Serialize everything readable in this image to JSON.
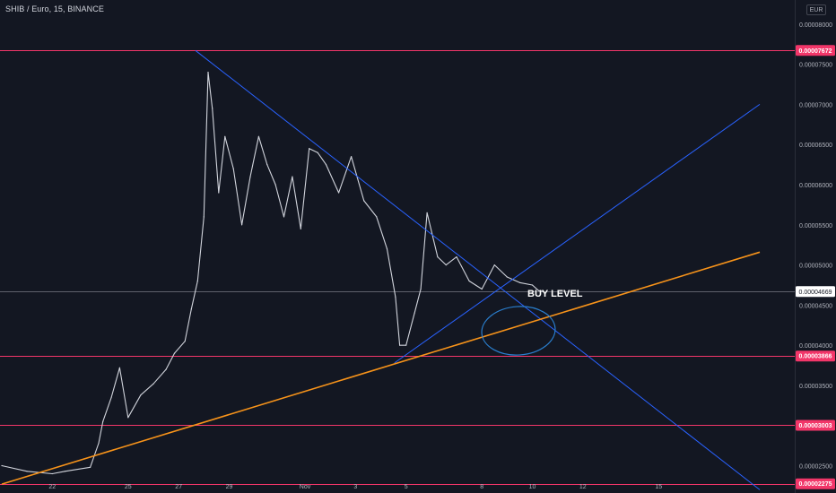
{
  "header": {
    "symbol_title": "SHIB / Euro, 15, BINANCE",
    "currency": "EUR"
  },
  "colors": {
    "background": "#131722",
    "price_line": "#d1d4dc",
    "trend_line_blue": "#2962ff",
    "trend_line_orange": "#f7931a",
    "horizontal_level": "#f23669",
    "price_badge": "#f23669",
    "current_price_badge": "#ffffff",
    "axis_text": "#b2b5be"
  },
  "annotation": {
    "text": "BUY LEVEL"
  },
  "chart_data": {
    "type": "line",
    "title": "SHIB / Euro, 15, BINANCE",
    "x_tick_labels": [
      "22",
      "25",
      "27",
      "29",
      "Nov",
      "3",
      "5",
      "8",
      "10",
      "12",
      "15"
    ],
    "y_tick_labels": [
      "0.00008000",
      "0.00007500",
      "0.00007000",
      "0.00006500",
      "0.00006000",
      "0.00005500",
      "0.00005000",
      "0.00004500",
      "0.00004000",
      "0.00003500",
      "0.00002500"
    ],
    "y_ticks": [
      8e-05,
      7.5e-05,
      7e-05,
      6.5e-05,
      6e-05,
      5.5e-05,
      5e-05,
      4.5e-05,
      4e-05,
      3.5e-05,
      2.5e-05
    ],
    "ylim": [
      2.16e-05,
      8.3e-05
    ],
    "x_range_days": [
      "2021-10-20",
      "2021-11-19"
    ],
    "price_labels": [
      {
        "label": "0.00007672",
        "value": 7.672e-05,
        "style": "level"
      },
      {
        "label": "0.00004669",
        "value": 4.669e-05,
        "style": "current"
      },
      {
        "label": "0.00003866",
        "value": 3.866e-05,
        "style": "level"
      },
      {
        "label": "0.00003003",
        "value": 3.003e-05,
        "style": "level"
      },
      {
        "label": "0.00002275",
        "value": 2.275e-05,
        "style": "level"
      }
    ],
    "horizontal_levels": [
      7.672e-05,
      3.866e-05,
      3.003e-05,
      2.275e-05
    ],
    "current_price": 4.669e-05,
    "series": [
      {
        "x": [
          "2021-10-20 00:00",
          "2021-10-21 00:00",
          "2021-10-22 00:00",
          "2021-10-22 12:00",
          "2021-10-23 12:00",
          "2021-10-23 20:00",
          "2021-10-24 00:00",
          "2021-10-24 08:00",
          "2021-10-24 16:00",
          "2021-10-25 00:00",
          "2021-10-25 12:00",
          "2021-10-26 00:00",
          "2021-10-26 12:00",
          "2021-10-26 20:00",
          "2021-10-27 06:00",
          "2021-10-27 12:00",
          "2021-10-27 18:00",
          "2021-10-28 00:00",
          "2021-10-28 04:00",
          "2021-10-28 08:00",
          "2021-10-28 14:00",
          "2021-10-28 20:00",
          "2021-10-29 04:00",
          "2021-10-29 12:00",
          "2021-10-29 20:00",
          "2021-10-30 04:00",
          "2021-10-30 12:00",
          "2021-10-30 20:00",
          "2021-10-31 04:00",
          "2021-10-31 12:00",
          "2021-10-31 20:00",
          "2021-11-01 04:00",
          "2021-11-01 12:00",
          "2021-11-01 20:00",
          "2021-11-02 08:00",
          "2021-11-02 20:00",
          "2021-11-03 08:00",
          "2021-11-03 20:00",
          "2021-11-04 06:00",
          "2021-11-04 14:00",
          "2021-11-04 18:00",
          "2021-11-05 00:00",
          "2021-11-05 08:00",
          "2021-11-05 14:00",
          "2021-11-05 20:00",
          "2021-11-06 06:00",
          "2021-11-06 14:00",
          "2021-11-07 00:00",
          "2021-11-07 12:00",
          "2021-11-08 00:00",
          "2021-11-08 12:00",
          "2021-11-09 00:00",
          "2021-11-09 12:00",
          "2021-11-10 00:00",
          "2021-11-10 06:00",
          "2021-11-10 10:00"
        ],
        "values": [
          2.5e-05,
          2.43e-05,
          2.4e-05,
          2.43e-05,
          2.48e-05,
          2.78e-05,
          3.05e-05,
          3.35e-05,
          3.72e-05,
          3.1e-05,
          3.38e-05,
          3.52e-05,
          3.7e-05,
          3.9e-05,
          4.05e-05,
          4.45e-05,
          4.8e-05,
          5.6e-05,
          7.4e-05,
          6.95e-05,
          5.9e-05,
          6.6e-05,
          6.2e-05,
          5.5e-05,
          6.1e-05,
          6.6e-05,
          6.25e-05,
          6e-05,
          5.6e-05,
          6.1e-05,
          5.45e-05,
          6.45e-05,
          6.4e-05,
          6.25e-05,
          5.9e-05,
          6.35e-05,
          5.8e-05,
          5.6e-05,
          5.2e-05,
          4.6e-05,
          4e-05,
          4e-05,
          4.4e-05,
          4.7e-05,
          5.65e-05,
          5.1e-05,
          5e-05,
          5.1e-05,
          4.8e-05,
          4.7e-05,
          5e-05,
          4.85e-05,
          4.78e-05,
          4.75e-05,
          4.68e-05,
          4.67e-05
        ]
      }
    ],
    "trend_lines": [
      {
        "color_key": "trend_line_blue",
        "from": {
          "x": "2021-10-27 16:00",
          "y": 7.672e-05
        },
        "to": {
          "x": "2021-11-19 00:00",
          "y": 2.2e-05
        }
      },
      {
        "color_key": "trend_line_blue",
        "from": {
          "x": "2021-11-04 13:00",
          "y": 3.78e-05
        },
        "to": {
          "x": "2021-11-19 00:00",
          "y": 7e-05
        }
      },
      {
        "color_key": "trend_line_orange",
        "from": {
          "x": "2021-10-20 00:00",
          "y": 2.27e-05
        },
        "to": {
          "x": "2021-11-19 00:00",
          "y": 5.16e-05
        }
      }
    ]
  }
}
